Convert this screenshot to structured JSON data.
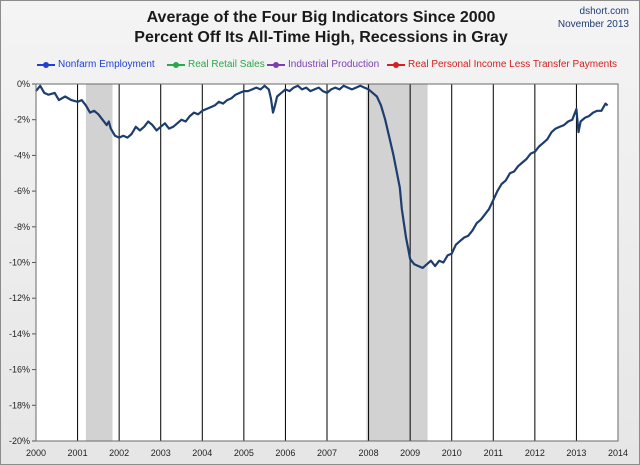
{
  "title": [
    "Average of the Four Big Indicators Since 2000",
    "Percent Off Its All-Time High, Recessions in Gray"
  ],
  "credit": [
    "dshort.com",
    "November 2013"
  ],
  "legend": [
    {
      "label": "Nonfarm Employment",
      "color": "#1f3fd6"
    },
    {
      "label": "Real Retail Sales",
      "color": "#2aa84a"
    },
    {
      "label": "Industrial Production",
      "color": "#7b3fb0"
    },
    {
      "label": "Real Personal Income Less Transfer Payments",
      "color": "#d42020"
    }
  ],
  "chart_data": {
    "type": "line",
    "title": "Average of the Four Big Indicators Since 2000 — Percent Off Its All-Time High, Recessions in Gray",
    "xlabel": "",
    "ylabel": "",
    "xlim": [
      2000,
      2014
    ],
    "ylim": [
      -20,
      0
    ],
    "x_ticks": [
      "2000",
      "2001",
      "2002",
      "2003",
      "2004",
      "2005",
      "2006",
      "2007",
      "2008",
      "2009",
      "2010",
      "2011",
      "2012",
      "2013",
      "2014"
    ],
    "y_ticks": [
      "0%",
      "-2%",
      "-4%",
      "-6%",
      "-8%",
      "-10%",
      "-12%",
      "-14%",
      "-16%",
      "-18%",
      "-20%"
    ],
    "grid": "vertical year lines",
    "line_color": "#1d3d6e",
    "recession_color": "#d2d2d2",
    "recessions": [
      [
        2001.2,
        2001.84
      ],
      [
        2007.95,
        2009.42
      ]
    ],
    "series": [
      {
        "x": [
          2000.0,
          2000.1,
          2000.2,
          2000.3,
          2000.45,
          2000.55,
          2000.7,
          2000.85,
          2001.0,
          2001.1,
          2001.2,
          2001.3,
          2001.4,
          2001.5,
          2001.6,
          2001.7,
          2001.75,
          2001.8,
          2001.9,
          2002.0,
          2002.1,
          2002.2,
          2002.3,
          2002.35,
          2002.4,
          2002.5,
          2002.6,
          2002.7,
          2002.8,
          2002.9,
          2003.0,
          2003.1,
          2003.2,
          2003.3,
          2003.4,
          2003.5,
          2003.6,
          2003.7,
          2003.8,
          2003.9,
          2004.0,
          2004.1,
          2004.2,
          2004.3,
          2004.4,
          2004.5,
          2004.6,
          2004.7,
          2004.8,
          2004.9,
          2005.0,
          2005.1,
          2005.2,
          2005.3,
          2005.4,
          2005.5,
          2005.6,
          2005.65,
          2005.7,
          2005.75,
          2005.8,
          2005.9,
          2006.0,
          2006.1,
          2006.2,
          2006.3,
          2006.4,
          2006.5,
          2006.6,
          2006.7,
          2006.8,
          2006.9,
          2007.0,
          2007.1,
          2007.2,
          2007.3,
          2007.4,
          2007.5,
          2007.6,
          2007.7,
          2007.8,
          2007.9,
          2008.0,
          2008.1,
          2008.2,
          2008.3,
          2008.4,
          2008.5,
          2008.6,
          2008.7,
          2008.75,
          2008.8,
          2008.85,
          2008.9,
          2008.95,
          2009.0,
          2009.1,
          2009.2,
          2009.3,
          2009.4,
          2009.5,
          2009.6,
          2009.7,
          2009.8,
          2009.9,
          2010.0,
          2010.1,
          2010.2,
          2010.3,
          2010.4,
          2010.5,
          2010.6,
          2010.7,
          2010.8,
          2010.9,
          2011.0,
          2011.1,
          2011.2,
          2011.3,
          2011.4,
          2011.5,
          2011.6,
          2011.7,
          2011.8,
          2011.9,
          2012.0,
          2012.1,
          2012.2,
          2012.3,
          2012.4,
          2012.5,
          2012.6,
          2012.7,
          2012.8,
          2012.9,
          2013.0,
          2013.05,
          2013.1,
          2013.2,
          2013.3,
          2013.4,
          2013.5,
          2013.6,
          2013.7,
          2013.75
        ],
        "y": [
          -0.4,
          -0.1,
          -0.5,
          -0.6,
          -0.5,
          -0.9,
          -0.7,
          -0.9,
          -1.0,
          -0.9,
          -1.2,
          -1.6,
          -1.5,
          -1.7,
          -2.0,
          -2.3,
          -2.1,
          -2.5,
          -2.9,
          -3.0,
          -2.9,
          -3.0,
          -2.8,
          -2.6,
          -2.4,
          -2.6,
          -2.4,
          -2.1,
          -2.3,
          -2.6,
          -2.4,
          -2.2,
          -2.5,
          -2.4,
          -2.2,
          -2.0,
          -2.1,
          -1.8,
          -1.6,
          -1.7,
          -1.5,
          -1.4,
          -1.3,
          -1.2,
          -1.0,
          -1.1,
          -0.9,
          -0.8,
          -0.6,
          -0.5,
          -0.4,
          -0.4,
          -0.3,
          -0.2,
          -0.3,
          -0.1,
          -0.3,
          -0.8,
          -1.6,
          -1.2,
          -0.7,
          -0.5,
          -0.3,
          -0.4,
          -0.2,
          -0.1,
          -0.3,
          -0.2,
          -0.4,
          -0.3,
          -0.2,
          -0.4,
          -0.5,
          -0.3,
          -0.2,
          -0.3,
          -0.1,
          -0.2,
          -0.3,
          -0.2,
          -0.1,
          -0.2,
          -0.3,
          -0.5,
          -0.7,
          -1.2,
          -2.0,
          -3.0,
          -4.0,
          -5.2,
          -5.8,
          -7.0,
          -7.8,
          -8.6,
          -9.2,
          -9.8,
          -10.1,
          -10.2,
          -10.3,
          -10.1,
          -9.9,
          -10.2,
          -9.9,
          -10.0,
          -9.6,
          -9.5,
          -9.0,
          -8.8,
          -8.6,
          -8.5,
          -8.2,
          -7.8,
          -7.6,
          -7.3,
          -7.0,
          -6.5,
          -6.0,
          -5.6,
          -5.4,
          -5.0,
          -4.9,
          -4.6,
          -4.4,
          -4.2,
          -3.9,
          -3.8,
          -3.5,
          -3.3,
          -3.1,
          -2.7,
          -2.5,
          -2.4,
          -2.3,
          -2.1,
          -2.0,
          -1.4,
          -2.7,
          -2.1,
          -1.9,
          -1.8,
          -1.6,
          -1.5,
          -1.5,
          -1.1,
          -1.2
        ]
      }
    ]
  }
}
